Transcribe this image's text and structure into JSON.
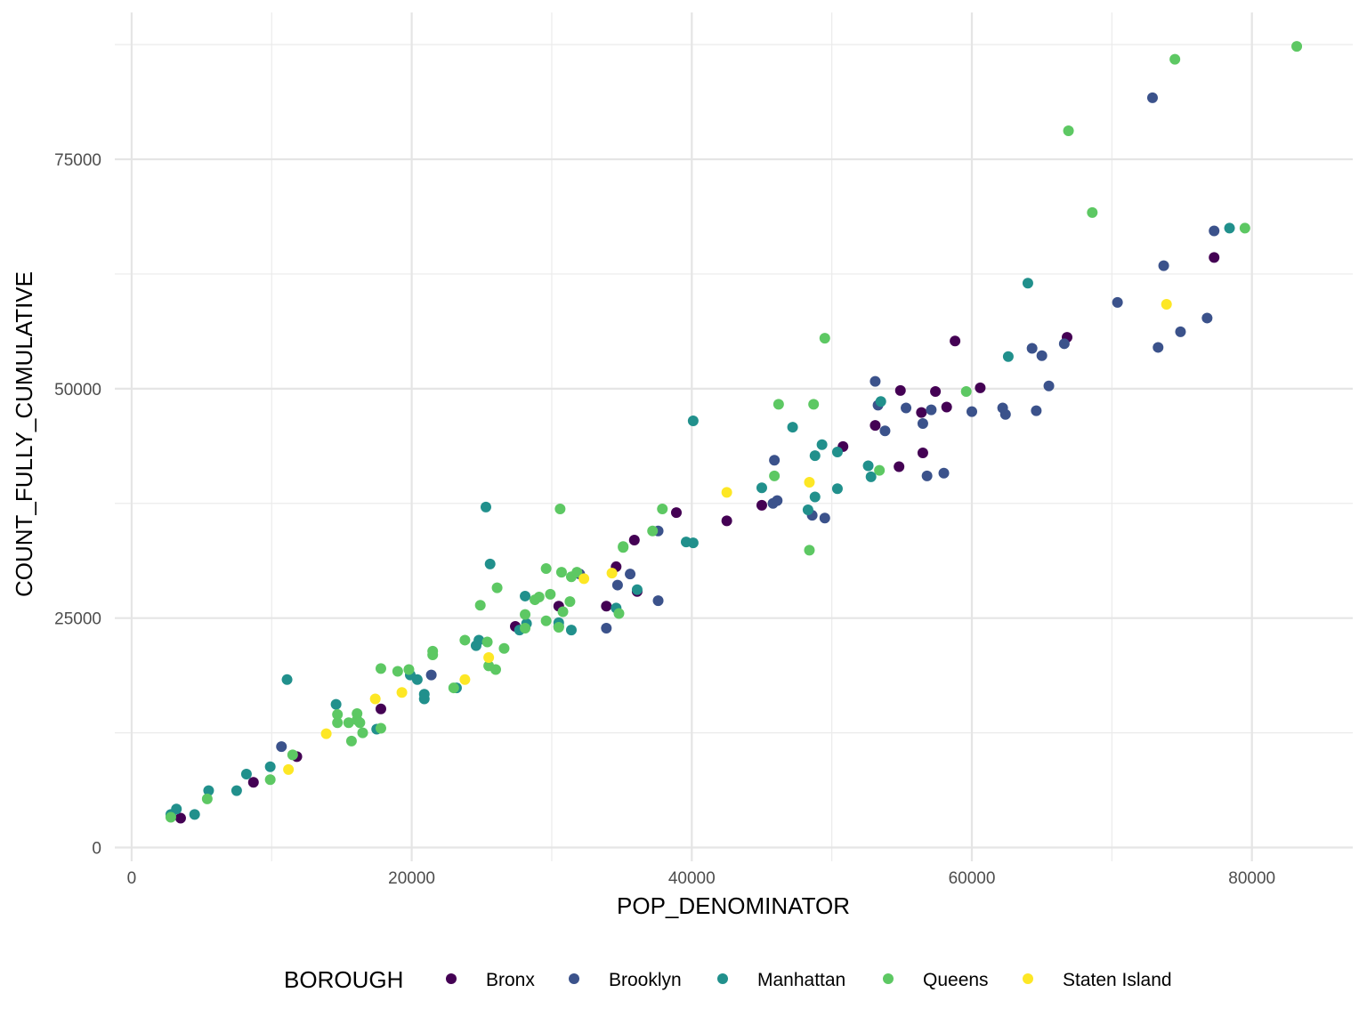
{
  "chart_data": {
    "type": "scatter",
    "title": "",
    "xlabel": "POP_DENOMINATOR",
    "ylabel": "COUNT_FULLY_CUMULATIVE",
    "xlim": [
      -1200,
      87200
    ],
    "ylim": [
      -1500,
      91000
    ],
    "x_ticks": [
      0,
      20000,
      40000,
      60000,
      80000
    ],
    "x_tick_labels": [
      "0",
      "20000",
      "40000",
      "60000",
      "80000"
    ],
    "y_ticks": [
      0,
      25000,
      50000,
      75000
    ],
    "y_tick_labels": [
      "0",
      "25000",
      "50000",
      "75000"
    ],
    "grid": true,
    "legend_position": "bottom",
    "legend_title": "BOROUGH",
    "series": [
      {
        "name": "Bronx",
        "color": "#440154",
        "points": [
          [
            3500,
            3200
          ],
          [
            8700,
            7100
          ],
          [
            11800,
            9900
          ],
          [
            17800,
            15100
          ],
          [
            27400,
            24100
          ],
          [
            30500,
            26300
          ],
          [
            33900,
            26300
          ],
          [
            34600,
            30600
          ],
          [
            35900,
            33500
          ],
          [
            36100,
            27900
          ],
          [
            38900,
            36500
          ],
          [
            42500,
            35600
          ],
          [
            45000,
            37300
          ],
          [
            50800,
            43700
          ],
          [
            53100,
            46000
          ],
          [
            54900,
            49800
          ],
          [
            54800,
            41500
          ],
          [
            56500,
            43000
          ],
          [
            56400,
            47400
          ],
          [
            57400,
            49700
          ],
          [
            58200,
            48000
          ],
          [
            58800,
            55200
          ],
          [
            60600,
            50100
          ],
          [
            66800,
            55600
          ],
          [
            77300,
            64300
          ]
        ]
      },
      {
        "name": "Brooklyn",
        "color": "#3b528b",
        "points": [
          [
            10700,
            11000
          ],
          [
            21400,
            18800
          ],
          [
            32000,
            29800
          ],
          [
            33900,
            23900
          ],
          [
            34700,
            28600
          ],
          [
            35600,
            29800
          ],
          [
            37600,
            34500
          ],
          [
            37600,
            26900
          ],
          [
            45800,
            37500
          ],
          [
            45900,
            42200
          ],
          [
            46100,
            37800
          ],
          [
            48600,
            36200
          ],
          [
            49500,
            35900
          ],
          [
            53100,
            50800
          ],
          [
            53300,
            48200
          ],
          [
            53800,
            45400
          ],
          [
            55300,
            47900
          ],
          [
            56500,
            46200
          ],
          [
            56800,
            40500
          ],
          [
            57100,
            47700
          ],
          [
            58000,
            40800
          ],
          [
            60000,
            47500
          ],
          [
            62200,
            47900
          ],
          [
            62400,
            47200
          ],
          [
            64300,
            54400
          ],
          [
            64600,
            47600
          ],
          [
            65000,
            53600
          ],
          [
            65500,
            50300
          ],
          [
            66600,
            54900
          ],
          [
            70400,
            59400
          ],
          [
            72900,
            81700
          ],
          [
            73300,
            54500
          ],
          [
            73700,
            63400
          ],
          [
            74900,
            56200
          ],
          [
            76800,
            57700
          ],
          [
            77300,
            67200
          ]
        ]
      },
      {
        "name": "Manhattan",
        "color": "#21908c",
        "points": [
          [
            2800,
            3600
          ],
          [
            3200,
            4200
          ],
          [
            4500,
            3600
          ],
          [
            5500,
            6200
          ],
          [
            7500,
            6200
          ],
          [
            8200,
            8000
          ],
          [
            9900,
            8800
          ],
          [
            11100,
            18300
          ],
          [
            14600,
            15600
          ],
          [
            17500,
            12900
          ],
          [
            19900,
            18800
          ],
          [
            20400,
            18300
          ],
          [
            20900,
            16700
          ],
          [
            20900,
            16200
          ],
          [
            23200,
            17400
          ],
          [
            24600,
            22000
          ],
          [
            24800,
            22600
          ],
          [
            25300,
            37100
          ],
          [
            25600,
            30900
          ],
          [
            27700,
            23700
          ],
          [
            28100,
            27400
          ],
          [
            28200,
            24400
          ],
          [
            30500,
            24500
          ],
          [
            30500,
            24100
          ],
          [
            31400,
            23700
          ],
          [
            34600,
            26100
          ],
          [
            36100,
            28100
          ],
          [
            39600,
            33300
          ],
          [
            40100,
            33200
          ],
          [
            40100,
            46500
          ],
          [
            45000,
            39200
          ],
          [
            47200,
            45800
          ],
          [
            48300,
            36800
          ],
          [
            48800,
            42700
          ],
          [
            48800,
            38200
          ],
          [
            49300,
            43900
          ],
          [
            50400,
            43100
          ],
          [
            50400,
            39100
          ],
          [
            52600,
            41600
          ],
          [
            52800,
            40400
          ],
          [
            53500,
            48600
          ],
          [
            62600,
            53500
          ],
          [
            64000,
            61500
          ],
          [
            78400,
            67500
          ]
        ]
      },
      {
        "name": "Queens",
        "color": "#5dc863",
        "points": [
          [
            2800,
            3300
          ],
          [
            5400,
            5300
          ],
          [
            9900,
            7400
          ],
          [
            11500,
            10100
          ],
          [
            14700,
            13600
          ],
          [
            14700,
            14500
          ],
          [
            15500,
            13600
          ],
          [
            15700,
            11600
          ],
          [
            16100,
            13900
          ],
          [
            16100,
            14600
          ],
          [
            16300,
            13600
          ],
          [
            16500,
            12500
          ],
          [
            17800,
            19500
          ],
          [
            17800,
            13000
          ],
          [
            19000,
            19200
          ],
          [
            19800,
            19400
          ],
          [
            21500,
            21000
          ],
          [
            21500,
            21400
          ],
          [
            23000,
            17400
          ],
          [
            23800,
            22600
          ],
          [
            24900,
            26400
          ],
          [
            25400,
            22400
          ],
          [
            25500,
            19800
          ],
          [
            26000,
            19400
          ],
          [
            26100,
            28300
          ],
          [
            26600,
            21700
          ],
          [
            28100,
            25400
          ],
          [
            28100,
            23900
          ],
          [
            28800,
            27000
          ],
          [
            29100,
            27300
          ],
          [
            29600,
            30400
          ],
          [
            29600,
            24700
          ],
          [
            29900,
            27600
          ],
          [
            30500,
            24000
          ],
          [
            30600,
            36900
          ],
          [
            30700,
            30000
          ],
          [
            30800,
            25700
          ],
          [
            31300,
            26800
          ],
          [
            31400,
            29500
          ],
          [
            31800,
            30000
          ],
          [
            34800,
            25500
          ],
          [
            35100,
            32700
          ],
          [
            35100,
            32800
          ],
          [
            37200,
            34500
          ],
          [
            37900,
            36900
          ],
          [
            45900,
            40500
          ],
          [
            46200,
            48300
          ],
          [
            48400,
            32400
          ],
          [
            48700,
            48300
          ],
          [
            49500,
            55500
          ],
          [
            53400,
            41100
          ],
          [
            59600,
            49700
          ],
          [
            66900,
            78100
          ],
          [
            68600,
            69200
          ],
          [
            74500,
            85900
          ],
          [
            79500,
            67500
          ],
          [
            83200,
            87300
          ]
        ]
      },
      {
        "name": "Staten Island",
        "color": "#fde725",
        "points": [
          [
            11200,
            8500
          ],
          [
            13900,
            12400
          ],
          [
            17400,
            16200
          ],
          [
            19300,
            16900
          ],
          [
            23800,
            18300
          ],
          [
            25500,
            20700
          ],
          [
            32300,
            29300
          ],
          [
            34300,
            29900
          ],
          [
            42500,
            38700
          ],
          [
            48400,
            39800
          ],
          [
            73900,
            59200
          ]
        ]
      }
    ]
  }
}
